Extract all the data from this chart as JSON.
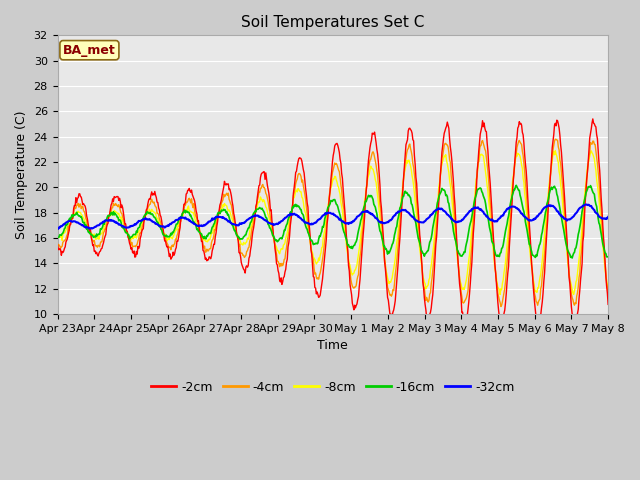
{
  "title": "Soil Temperatures Set C",
  "xlabel": "Time",
  "ylabel": "Soil Temperature (C)",
  "ylim": [
    10,
    32
  ],
  "yticks": [
    10,
    12,
    14,
    16,
    18,
    20,
    22,
    24,
    26,
    28,
    30,
    32
  ],
  "colors": {
    "-2cm": "#ff0000",
    "-4cm": "#ff9900",
    "-8cm": "#ffff00",
    "-16cm": "#00cc00",
    "-32cm": "#0000ff"
  },
  "legend_label": "BA_met",
  "fig_bg": "#cccccc",
  "plot_bg": "#e8e8e8",
  "grid_color": "#ffffff",
  "x_tick_labels": [
    "Apr 23",
    "Apr 24",
    "Apr 25",
    "Apr 26",
    "Apr 27",
    "Apr 28",
    "Apr 29",
    "Apr 30",
    "May 1",
    "May 2",
    "May 3",
    "May 4",
    "May 5",
    "May 6",
    "May 7",
    "May 8"
  ],
  "base_temp": 17.0,
  "figsize": [
    6.4,
    4.8
  ],
  "dpi": 100
}
